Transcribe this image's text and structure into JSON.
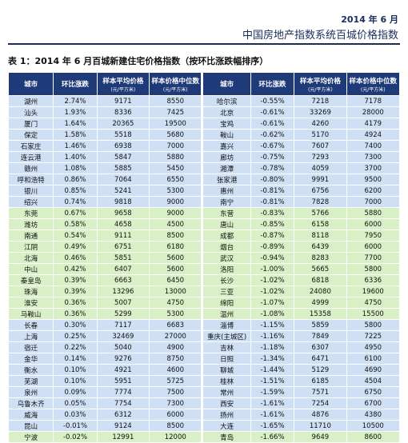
{
  "header": {
    "date": "2014 年 6 月",
    "title": "中国房地产指数系统百城价格指数"
  },
  "table": {
    "caption": "表 1：2014 年 6 月百城新建住宅价格指数（按环比涨跌幅排序）",
    "columns": [
      {
        "label": "城市"
      },
      {
        "label": "环比涨跌"
      },
      {
        "label": "样本平均价格",
        "unit": "(元/平方米)"
      },
      {
        "label": "样本价格中位数",
        "unit": "(元/平方米)"
      },
      {
        "label": "城市"
      },
      {
        "label": "环比涨跌"
      },
      {
        "label": "样本平均价格",
        "unit": "(元/平方米)"
      },
      {
        "label": "样本价格中位数",
        "unit": "(元/平方米)"
      }
    ],
    "rows": [
      [
        "湖州",
        "2.74%",
        9171,
        8550,
        "哈尔滨",
        "-0.55%",
        7218,
        7178
      ],
      [
        "汕头",
        "1.93%",
        8336,
        7425,
        "北京",
        "-0.61%",
        33269,
        28000
      ],
      [
        "厦门",
        "1.64%",
        20365,
        19500,
        "宝鸡",
        "-0.61%",
        4260,
        4179
      ],
      [
        "保定",
        "1.58%",
        5518,
        5680,
        "鞍山",
        "-0.62%",
        5170,
        4924
      ],
      [
        "石家庄",
        "1.46%",
        6938,
        7000,
        "嘉兴",
        "-0.67%",
        7607,
        7400
      ],
      [
        "连云港",
        "1.40%",
        5847,
        5880,
        "廊坊",
        "-0.75%",
        7293,
        7300
      ],
      [
        "赣州",
        "1.08%",
        5885,
        5450,
        "湘潭",
        "-0.78%",
        4059,
        3700
      ],
      [
        "呼和浩特",
        "0.86%",
        7064,
        6550,
        "张家港",
        "-0.80%",
        9991,
        9500
      ],
      [
        "银川",
        "0.85%",
        5241,
        5300,
        "惠州",
        "-0.81%",
        6756,
        6200
      ],
      [
        "绍兴",
        "0.74%",
        9818,
        9000,
        "南宁",
        "-0.81%",
        7828,
        7000
      ],
      [
        "东莞",
        "0.67%",
        9658,
        9000,
        "东营",
        "-0.83%",
        5766,
        5880
      ],
      [
        "潍坊",
        "0.58%",
        4658,
        4500,
        "唐山",
        "-0.85%",
        6158,
        6000
      ],
      [
        "南通",
        "0.54%",
        9111,
        8500,
        "成都",
        "-0.87%",
        8118,
        7950
      ],
      [
        "江阴",
        "0.49%",
        6751,
        6180,
        "烟台",
        "-0.89%",
        6439,
        6000
      ],
      [
        "北海",
        "0.46%",
        5851,
        5600,
        "武汉",
        "-0.94%",
        8283,
        7700
      ],
      [
        "中山",
        "0.42%",
        6407,
        5600,
        "洛阳",
        "-1.00%",
        5665,
        5800
      ],
      [
        "秦皇岛",
        "0.39%",
        6663,
        6450,
        "长沙",
        "-1.02%",
        6818,
        6336
      ],
      [
        "珠海",
        "0.39%",
        13296,
        13000,
        "三亚",
        "-1.02%",
        24080,
        19600
      ],
      [
        "淮安",
        "0.36%",
        5007,
        4750,
        "绵阳",
        "-1.07%",
        4999,
        4750
      ],
      [
        "马鞍山",
        "0.36%",
        5299,
        5300,
        "温州",
        "-1.08%",
        15358,
        15500
      ],
      [
        "长春",
        "0.30%",
        7117,
        6683,
        "淄博",
        "-1.15%",
        5859,
        5800
      ],
      [
        "上海",
        "0.25%",
        32469,
        27000,
        "重庆(主城区)",
        "-1.16%",
        7849,
        7225
      ],
      [
        "宿迁",
        "0.22%",
        5040,
        4900,
        "吉林",
        "-1.18%",
        6307,
        4950
      ],
      [
        "金华",
        "0.14%",
        9276,
        8750,
        "日照",
        "-1.34%",
        6471,
        6100
      ],
      [
        "衡水",
        "0.10%",
        4921,
        4600,
        "聊城",
        "-1.44%",
        5129,
        4690
      ],
      [
        "芜湖",
        "0.10%",
        5951,
        5725,
        "桂林",
        "-1.51%",
        6185,
        4504
      ],
      [
        "泉州",
        "0.09%",
        7774,
        7500,
        "常州",
        "-1.59%",
        7571,
        6750
      ],
      [
        "乌鲁木齐",
        "0.05%",
        7754,
        7300,
        "西安",
        "-1.61%",
        7254,
        6700
      ],
      [
        "威海",
        "0.03%",
        6312,
        6000,
        "扬州",
        "-1.61%",
        4876,
        4380
      ],
      [
        "昆山",
        "-0.01%",
        9124,
        8500,
        "大连",
        "-1.65%",
        11710,
        10500
      ],
      [
        "宁波",
        "-0.02%",
        12991,
        12000,
        "青岛",
        "-1.66%",
        9649,
        8600
      ]
    ]
  }
}
